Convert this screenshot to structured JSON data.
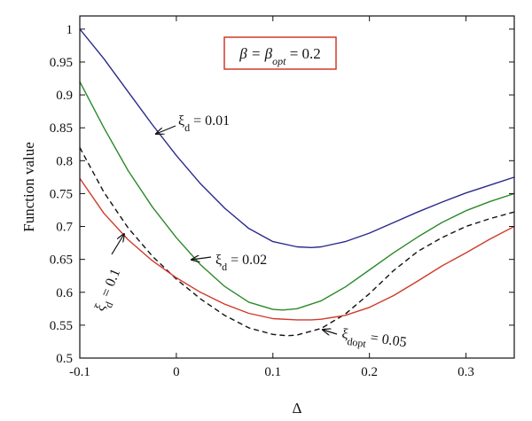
{
  "chart_data": {
    "type": "line",
    "xlabel": "Δ",
    "ylabel": "Function value",
    "xlim": [
      -0.1,
      0.35
    ],
    "ylim": [
      0.5,
      1.02
    ],
    "grid": false,
    "x_ticks": [
      "-0.1",
      "0",
      "0.1",
      "0.2",
      "0.3"
    ],
    "x_tick_values": [
      -0.1,
      0,
      0.1,
      0.2,
      0.3
    ],
    "y_ticks": [
      "0.5",
      "0.55",
      "0.6",
      "0.65",
      "0.7",
      "0.75",
      "0.8",
      "0.85",
      "0.9",
      "0.95",
      "1"
    ],
    "y_tick_values": [
      0.5,
      0.55,
      0.6,
      0.65,
      0.7,
      0.75,
      0.8,
      0.85,
      0.9,
      0.95,
      1.0
    ],
    "box_label": {
      "pre": "β = β",
      "sub": "opt",
      "post": " = 0.2",
      "border_color": "#d03a2a"
    },
    "series": [
      {
        "color": "#2a2a8c",
        "dash": false,
        "x": [
          -0.1,
          -0.075,
          -0.05,
          -0.025,
          0.0,
          0.025,
          0.05,
          0.075,
          0.1,
          0.125,
          0.14,
          0.15,
          0.175,
          0.2,
          0.225,
          0.25,
          0.275,
          0.3,
          0.325,
          0.35
        ],
        "y": [
          1.0,
          0.955,
          0.905,
          0.855,
          0.808,
          0.765,
          0.728,
          0.697,
          0.677,
          0.669,
          0.668,
          0.669,
          0.677,
          0.69,
          0.706,
          0.722,
          0.737,
          0.751,
          0.763,
          0.775
        ]
      },
      {
        "color": "#2a8a2a",
        "dash": false,
        "x": [
          -0.1,
          -0.075,
          -0.05,
          -0.025,
          0.0,
          0.025,
          0.05,
          0.075,
          0.1,
          0.11,
          0.125,
          0.15,
          0.175,
          0.2,
          0.225,
          0.25,
          0.275,
          0.3,
          0.325,
          0.35
        ],
        "y": [
          0.92,
          0.85,
          0.785,
          0.73,
          0.683,
          0.642,
          0.609,
          0.585,
          0.574,
          0.573,
          0.575,
          0.587,
          0.608,
          0.634,
          0.66,
          0.684,
          0.706,
          0.724,
          0.738,
          0.75
        ]
      },
      {
        "color": "#111111",
        "dash": true,
        "x": [
          -0.1,
          -0.075,
          -0.05,
          -0.025,
          0.0,
          0.025,
          0.05,
          0.075,
          0.1,
          0.115,
          0.125,
          0.15,
          0.175,
          0.2,
          0.225,
          0.25,
          0.275,
          0.3,
          0.325,
          0.35
        ],
        "y": [
          0.82,
          0.752,
          0.698,
          0.655,
          0.62,
          0.59,
          0.565,
          0.546,
          0.536,
          0.534,
          0.535,
          0.545,
          0.567,
          0.598,
          0.633,
          0.662,
          0.683,
          0.7,
          0.712,
          0.722
        ]
      },
      {
        "color": "#d03a2a",
        "dash": false,
        "x": [
          -0.1,
          -0.075,
          -0.05,
          -0.025,
          0.0,
          0.025,
          0.05,
          0.075,
          0.1,
          0.125,
          0.14,
          0.15,
          0.175,
          0.2,
          0.225,
          0.25,
          0.275,
          0.3,
          0.325,
          0.35
        ],
        "y": [
          0.773,
          0.72,
          0.68,
          0.648,
          0.622,
          0.6,
          0.582,
          0.568,
          0.56,
          0.558,
          0.558,
          0.559,
          0.565,
          0.577,
          0.595,
          0.617,
          0.64,
          0.66,
          0.681,
          0.7
        ]
      }
    ],
    "annotations": [
      {
        "text": "ξ",
        "sub": "d",
        "post": " = 0.01"
      },
      {
        "text": "ξ",
        "sub": "d",
        "post": " = 0.02"
      },
      {
        "text": "ξ",
        "sub": "d",
        "post": " = 0.1"
      },
      {
        "text": "ξ",
        "sub": "dopt",
        "post": " = 0.05"
      }
    ]
  }
}
